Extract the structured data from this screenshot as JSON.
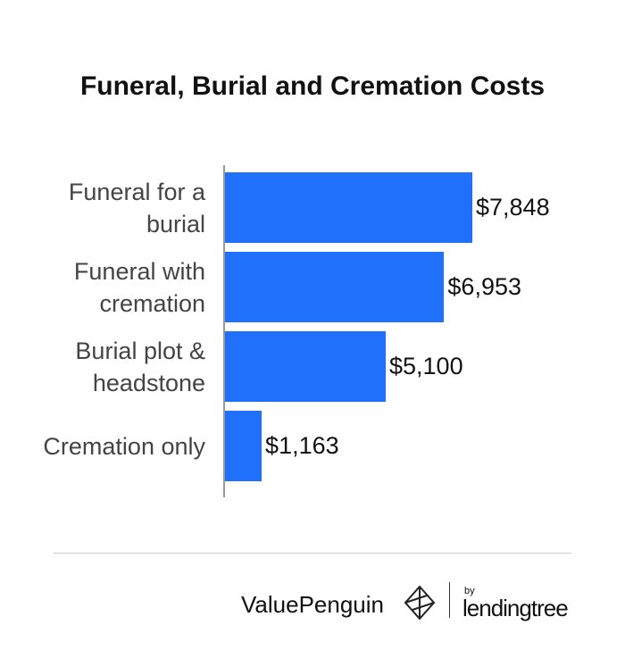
{
  "chart_data": {
    "type": "bar",
    "orientation": "horizontal",
    "title": "Funeral, Burial and Cremation Costs",
    "categories": [
      "Funeral for a burial",
      "Funeral with cremation",
      "Burial plot & headstone",
      "Cremation only"
    ],
    "values": [
      7848,
      6953,
      5100,
      1163
    ],
    "value_labels": [
      "$7,848",
      "$6,953",
      "$5,100",
      "$1,163"
    ],
    "color": "#2170fb"
  },
  "footer": {
    "brand": "ValuePenguin",
    "by": "by",
    "partner": "lendingtree"
  }
}
